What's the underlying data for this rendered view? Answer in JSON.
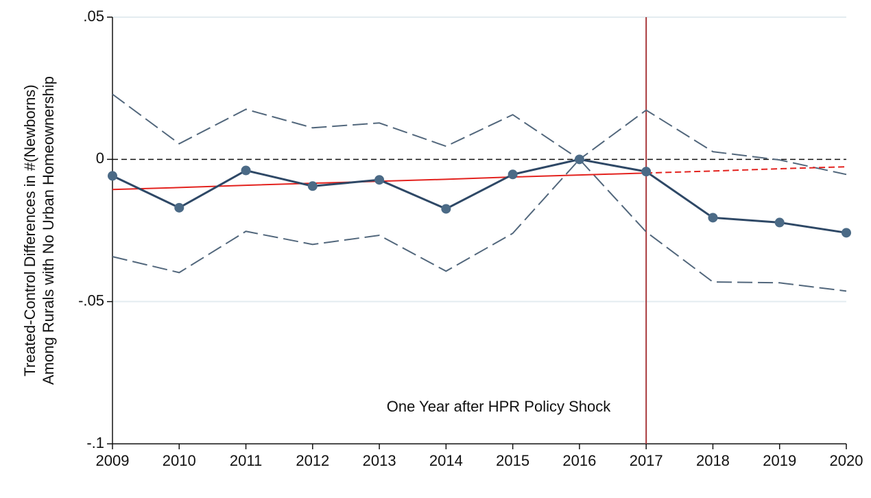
{
  "chart_data": {
    "type": "line",
    "y_label": [
      "Treated-Control Differences in #(Newborns)",
      "Among Rurals with No Urban Homeownership"
    ],
    "annotation": "One Year after HPR Policy Shock",
    "x": [
      2009,
      2010,
      2011,
      2012,
      2013,
      2014,
      2015,
      2016,
      2017,
      2018,
      2019,
      2020
    ],
    "xlim": [
      2009,
      2020
    ],
    "xticks": [
      2009,
      2010,
      2011,
      2012,
      2013,
      2014,
      2015,
      2016,
      2017,
      2018,
      2019,
      2020
    ],
    "ylim": [
      -0.1,
      0.05
    ],
    "yticks": [
      {
        "value": 0.05,
        "label": ".05"
      },
      0,
      {
        "value": -0.05,
        "label": "-.05"
      },
      {
        "value": -0.1,
        "label": "-.1"
      }
    ],
    "grid": true,
    "zero_line": true,
    "vline": 2017,
    "vline_color": "#a8373a",
    "series": [
      {
        "color": "#52677c",
        "style": "dashed",
        "values": [
          0.0229,
          0.0055,
          0.0176,
          0.0111,
          0.0128,
          0.0046,
          0.0157,
          0,
          0.0173,
          0.0027,
          -0.0002,
          -0.0053
        ]
      },
      {
        "color": "#52677c",
        "style": "dashed",
        "values": [
          -0.0342,
          -0.0398,
          -0.0253,
          -0.0299,
          -0.0267,
          -0.0393,
          -0.026,
          0,
          -0.0255,
          -0.0431,
          -0.0434,
          -0.0463
        ]
      },
      {
        "color": "#e3221e",
        "style": "solid",
        "values": [
          -0.0106,
          -0.0099,
          -0.0091,
          -0.0084,
          -0.0077,
          -0.007,
          -0.0062,
          -0.0055,
          -0.0048,
          null,
          null,
          null
        ]
      },
      {
        "color": "#e3221e",
        "style": "dashed",
        "values": [
          null,
          null,
          null,
          null,
          null,
          null,
          null,
          null,
          -0.0048,
          -0.0041,
          -0.0033,
          -0.0026
        ]
      },
      {
        "color": "#2e4866",
        "style": "solid",
        "markers": true,
        "marker_color": "#4b6a86",
        "values": [
          -0.0058,
          -0.017,
          -0.0039,
          -0.0094,
          -0.0072,
          -0.0174,
          -0.0053,
          0,
          -0.0043,
          -0.0205,
          -0.0222,
          -0.0258
        ]
      }
    ]
  }
}
